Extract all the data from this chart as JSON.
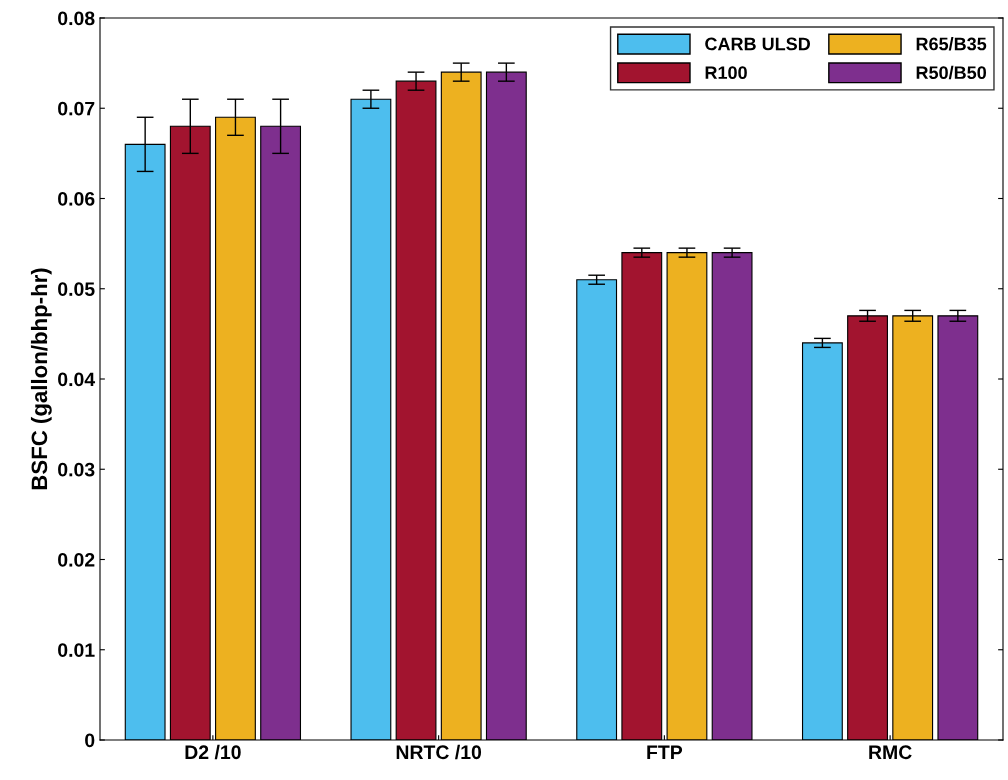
{
  "chart_data": {
    "type": "bar",
    "ylabel": "BSFC (gallon/bhp-hr)",
    "categories": [
      "D2 /10",
      "NRTC /10",
      "FTP",
      "RMC"
    ],
    "series": [
      {
        "name": "CARB ULSD",
        "color": "#4dbeee",
        "values": [
          0.066,
          0.071,
          0.051,
          0.044
        ],
        "errors": [
          0.003,
          0.001,
          0.0005,
          0.0005
        ]
      },
      {
        "name": "R100",
        "color": "#a2142f",
        "values": [
          0.068,
          0.073,
          0.054,
          0.047
        ],
        "errors": [
          0.003,
          0.001,
          0.0005,
          0.0006
        ]
      },
      {
        "name": "R65/B35",
        "color": "#edb120",
        "values": [
          0.069,
          0.074,
          0.054,
          0.047
        ],
        "errors": [
          0.002,
          0.001,
          0.0005,
          0.0006
        ]
      },
      {
        "name": "R50/B50",
        "color": "#7e2f8e",
        "values": [
          0.068,
          0.074,
          0.054,
          0.047
        ],
        "errors": [
          0.003,
          0.001,
          0.0005,
          0.0006
        ]
      }
    ],
    "ylim": [
      0,
      0.08
    ],
    "yticks": [
      0,
      0.01,
      0.02,
      0.03,
      0.04,
      0.05,
      0.06,
      0.07,
      0.08
    ],
    "grid": false,
    "legend": "top right"
  }
}
